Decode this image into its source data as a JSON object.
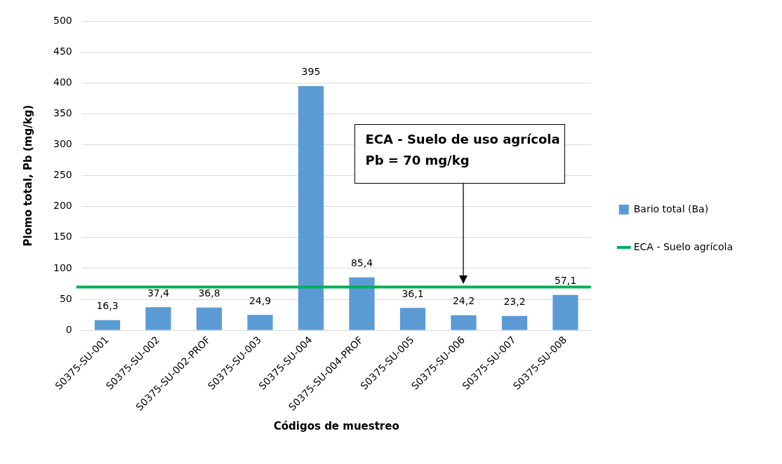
{
  "chart_data": {
    "type": "bar",
    "xlabel": "Códigos de muestreo",
    "ylabel": "Plomo total, Pb (mg/kg)",
    "categories": [
      "S0375-SU-001",
      "S0375-SU-002",
      "S0375-SU-002-PROF",
      "S0375-SU-003",
      "S0375-SU-004",
      "S0375-SU-004-PROF",
      "S0375-SU-005",
      "S0375-SU-006",
      "S0375-SU-007",
      "S0375-SU-008"
    ],
    "series": [
      {
        "name": "Bario total (Ba)",
        "color": "#5b9bd5",
        "values": [
          16.3,
          37.4,
          36.8,
          24.9,
          395,
          85.4,
          36.1,
          24.2,
          23.2,
          57.1
        ],
        "value_labels": [
          "16,3",
          "37,4",
          "36,8",
          "24,9",
          "395",
          "85,4",
          "36,1",
          "24,2",
          "23,2",
          "57,1"
        ]
      }
    ],
    "ylim": [
      0,
      500
    ],
    "yticks": [
      0,
      50,
      100,
      150,
      200,
      250,
      300,
      350,
      400,
      450,
      500
    ],
    "grid": "y",
    "legend": "right",
    "ref_lines": [
      {
        "axis": "y",
        "value": 70,
        "label": "ECA - Suelo agrícola",
        "color": "#00b050"
      }
    ],
    "annotations": [
      "ECA - Suelo de uso agrícola\nPb = 70 mg/kg"
    ]
  }
}
